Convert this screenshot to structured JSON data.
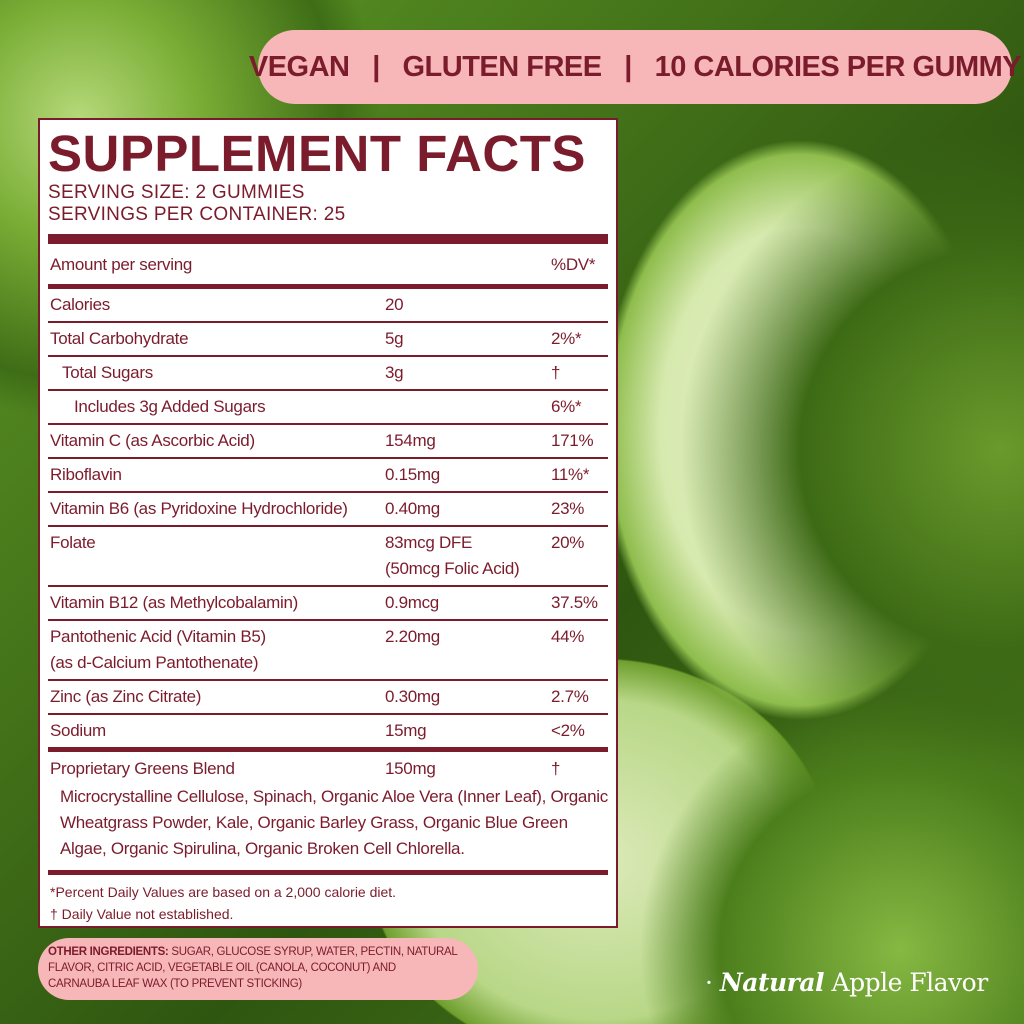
{
  "banner": {
    "items": [
      "VEGAN",
      "GLUTEN FREE",
      "10 CALORIES PER GUMMY"
    ],
    "separator": "|"
  },
  "facts": {
    "title": "SUPPLEMENT FACTS",
    "serving_size": "SERVING SIZE: 2 GUMMIES",
    "servings_per_container": "SERVINGS PER CONTAINER: 25",
    "header": {
      "label": "Amount per serving",
      "dv": "%DV*"
    },
    "rows": [
      {
        "name": "Calories",
        "amount": "20",
        "dv": "",
        "indent": 0
      },
      {
        "name": "Total Carbohydrate",
        "amount": "5g",
        "dv": "2%*",
        "indent": 0
      },
      {
        "name": "Total Sugars",
        "amount": "3g",
        "dv": "†",
        "indent": 1
      },
      {
        "name": "Includes 3g Added Sugars",
        "amount": "",
        "dv": "6%*",
        "indent": 2
      },
      {
        "name": "Vitamin C (as Ascorbic Acid)",
        "amount": "154mg",
        "dv": "171%",
        "indent": 0
      },
      {
        "name": "Riboflavin",
        "amount": "0.15mg",
        "dv": "11%*",
        "indent": 0
      },
      {
        "name": "Vitamin B6 (as Pyridoxine Hydrochloride)",
        "amount": "0.40mg",
        "dv": "23%",
        "indent": 0
      },
      {
        "name": "Folate",
        "amount": "83mcg DFE\n(50mcg Folic Acid)",
        "dv": "20%",
        "indent": 0
      },
      {
        "name": "Vitamin B12 (as Methylcobalamin)",
        "amount": "0.9mcg",
        "dv": "37.5%",
        "indent": 0
      },
      {
        "name": "Pantothenic Acid (Vitamin B5)\n(as d-Calcium Pantothenate)",
        "amount": "2.20mg",
        "dv": "44%",
        "indent": 0
      },
      {
        "name": "Zinc (as Zinc Citrate)",
        "amount": "0.30mg",
        "dv": "2.7%",
        "indent": 0
      },
      {
        "name": "Sodium",
        "amount": "15mg",
        "dv": "<2%",
        "indent": 0
      }
    ],
    "blend": {
      "name": "Proprietary Greens Blend",
      "amount": "150mg",
      "dv": "†",
      "ingredients": "Microcrystalline Cellulose, Spinach, Organic Aloe Vera (Inner Leaf), Organic Wheatgrass Powder, Kale, Organic Barley Grass, Organic Blue Green Algae, Organic Spirulina, Organic Broken Cell Chlorella."
    },
    "footnote1": "*Percent Daily Values are based on a 2,000 calorie diet.",
    "footnote2": "† Daily Value not established."
  },
  "other_ingredients": {
    "label": "OTHER INGREDIENTS:",
    "text": "SUGAR, GLUCOSE SYRUP, WATER, PECTIN, NATURAL FLAVOR, CITRIC ACID, VEGETABLE OIL (CANOLA, COCONUT) AND CARNAUBA LEAF WAX (TO PREVENT STICKING)"
  },
  "flavor": {
    "bullet": "·",
    "emphasis": "Natural",
    "text": "Apple Flavor"
  },
  "colors": {
    "maroon": "#7b1c2c",
    "pink": "#f7b6b8"
  }
}
